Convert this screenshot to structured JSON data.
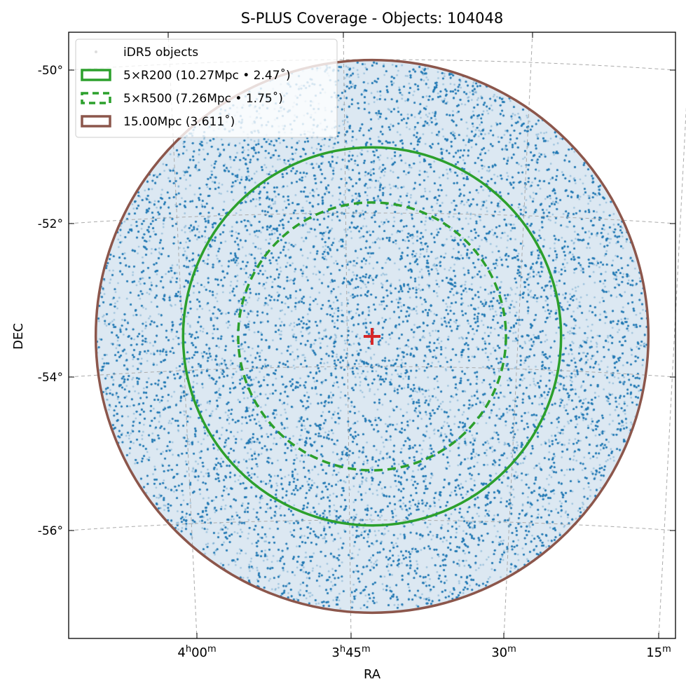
{
  "chart_data": {
    "type": "scatter",
    "title": "S-PLUS Coverage - Objects: 104048",
    "xlabel": "RA",
    "ylabel": "DEC",
    "object_count": 104048,
    "dec_ticks": [
      {
        "value": -50,
        "label": "-50°"
      },
      {
        "value": -52,
        "label": "-52°"
      },
      {
        "value": -54,
        "label": "-54°"
      },
      {
        "value": -56,
        "label": "-56°"
      }
    ],
    "ra_ticks": [
      {
        "h": "4",
        "m": "00",
        "label_main": "4",
        "sup1": "h",
        "main2": "00",
        "sup2": "m"
      },
      {
        "h": "3",
        "m": "45",
        "label_main": "3",
        "sup1": "h",
        "main2": "45",
        "sup2": "m"
      },
      {
        "h": "",
        "m": "30",
        "label_main": "",
        "sup1": "",
        "main2": "30",
        "sup2": "m"
      },
      {
        "h": "",
        "m": "15",
        "label_main": "",
        "sup1": "",
        "main2": "15",
        "sup2": "m"
      }
    ],
    "grid": true,
    "legend_position": "top-left",
    "legend": [
      {
        "label": "iDR5 objects",
        "type": "point",
        "color": "#1f77b4"
      },
      {
        "label": "5×R200 (10.27Mpc • 2.47$^\\circ$)",
        "display": "5×R200 (10.27Mpc • 2.47˚)",
        "type": "solid",
        "color": "#2ca02c",
        "radius_deg": 2.47
      },
      {
        "label": "5×R500 (7.26Mpc • 1.75$^\\circ$)",
        "display": "5×R500 (7.26Mpc • 1.75˚)",
        "type": "dashed",
        "color": "#2ca02c",
        "radius_deg": 1.75
      },
      {
        "label": "15.00Mpc (3.611$^\\circ$)",
        "display": "15.00Mpc (3.611˚)",
        "type": "solid",
        "color": "#8c564b",
        "radius_deg": 3.611
      }
    ],
    "center_marker": {
      "symbol": "+",
      "color": "#d62728",
      "dec": -53.45
    }
  }
}
